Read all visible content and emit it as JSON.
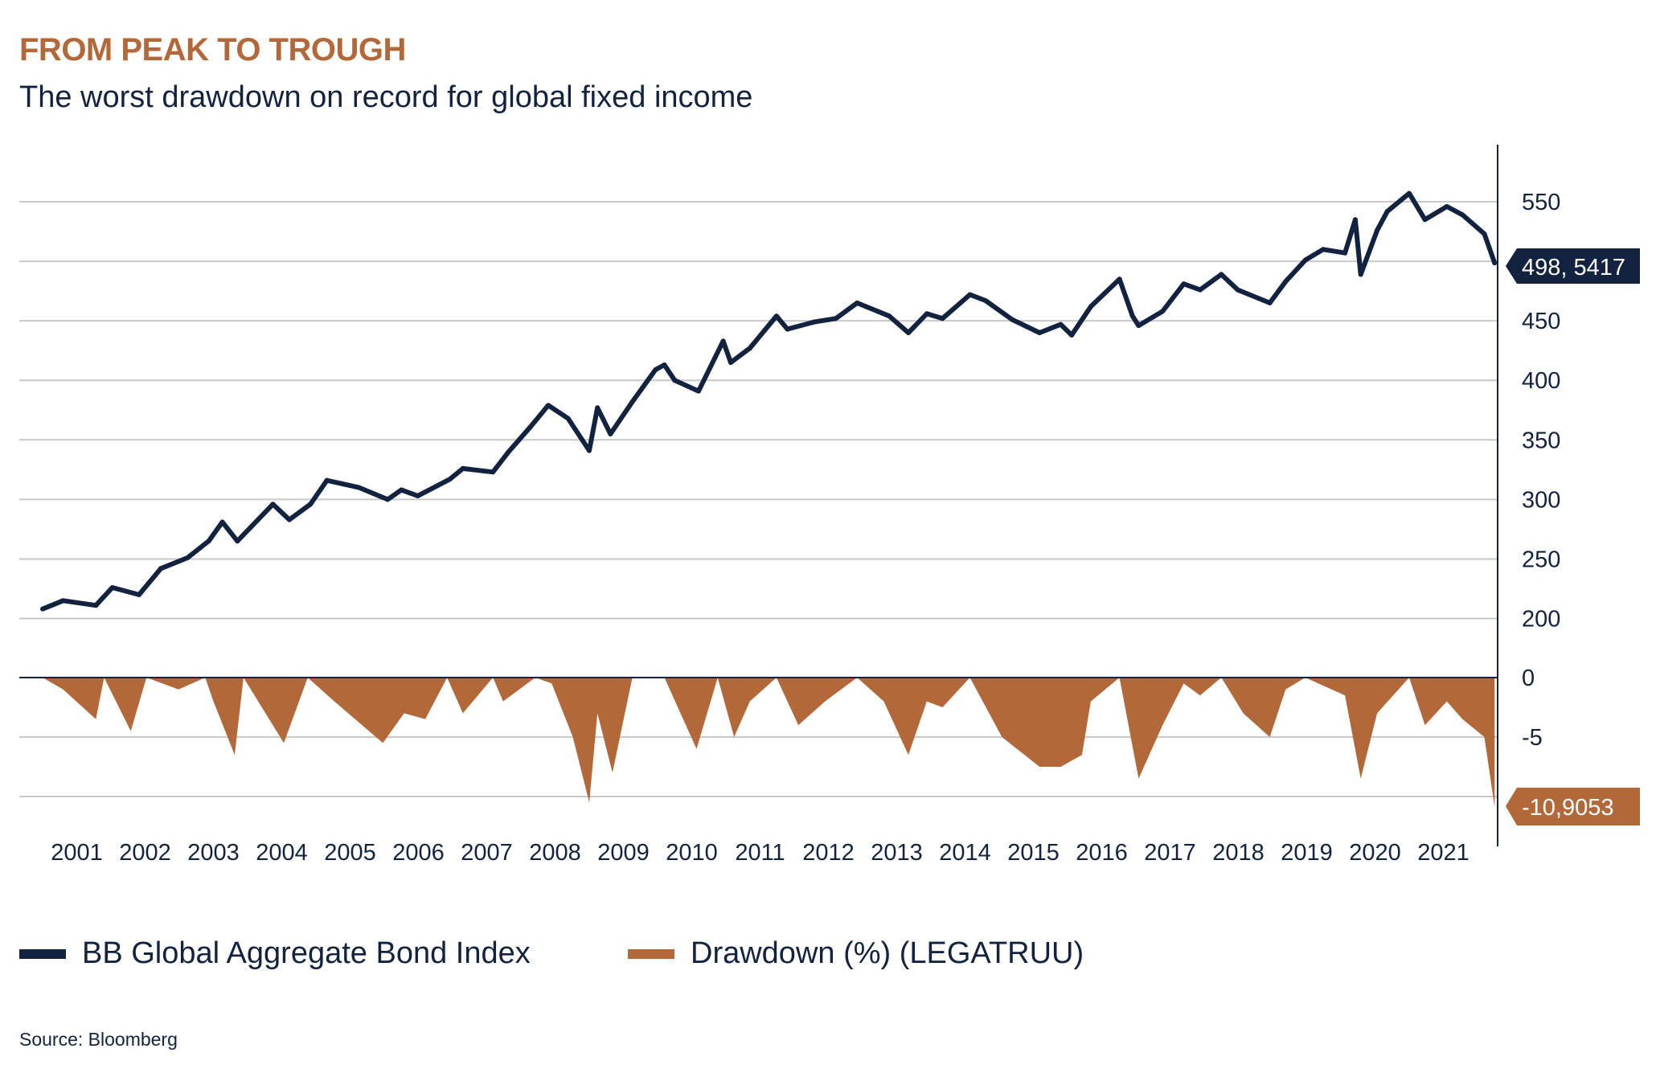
{
  "title": "FROM PEAK TO TROUGH",
  "subtitle": "The worst drawdown on record for global fixed income",
  "source": "Source: Bloomberg",
  "colors": {
    "index": "#13233f",
    "drawdown": "#b3683a",
    "grid": "#c8c8c8",
    "title": "#b3683a"
  },
  "chart_data": {
    "type": "line+area",
    "x_ticks": [
      "2001",
      "2002",
      "2003",
      "2004",
      "2005",
      "2006",
      "2007",
      "2008",
      "2009",
      "2010",
      "2011",
      "2012",
      "2013",
      "2014",
      "2015",
      "2016",
      "2017",
      "2018",
      "2019",
      "2020",
      "2021"
    ],
    "y_axis_position": "right",
    "grid": true,
    "legend_placement": "bottom",
    "upper_panel": {
      "yticks": [
        "550",
        "450",
        "400",
        "350",
        "300",
        "250",
        "200"
      ],
      "ylim": [
        200,
        550
      ],
      "last_value_label": "498, 5417",
      "series": {
        "name": "BB Global Aggregate Bond Index",
        "type": "line",
        "points": [
          [
            2000.6,
            208
          ],
          [
            2000.9,
            215
          ],
          [
            2001.38,
            211
          ],
          [
            2001.62,
            226
          ],
          [
            2002.01,
            220
          ],
          [
            2002.33,
            242
          ],
          [
            2002.72,
            251
          ],
          [
            2003.03,
            265
          ],
          [
            2003.23,
            281
          ],
          [
            2003.45,
            265
          ],
          [
            2003.97,
            296
          ],
          [
            2004.21,
            283
          ],
          [
            2004.52,
            296
          ],
          [
            2004.76,
            316
          ],
          [
            2005.23,
            310
          ],
          [
            2005.65,
            300
          ],
          [
            2005.85,
            308
          ],
          [
            2006.09,
            303
          ],
          [
            2006.56,
            317
          ],
          [
            2006.75,
            326
          ],
          [
            2007.19,
            323
          ],
          [
            2007.42,
            340
          ],
          [
            2007.74,
            361
          ],
          [
            2008.0,
            379
          ],
          [
            2008.29,
            368
          ],
          [
            2008.6,
            341
          ],
          [
            2008.72,
            377
          ],
          [
            2008.91,
            355
          ],
          [
            2009.23,
            382
          ],
          [
            2009.57,
            409
          ],
          [
            2009.7,
            413
          ],
          [
            2009.85,
            400
          ],
          [
            2010.2,
            391
          ],
          [
            2010.56,
            433
          ],
          [
            2010.67,
            415
          ],
          [
            2010.95,
            427
          ],
          [
            2011.34,
            454
          ],
          [
            2011.5,
            443
          ],
          [
            2011.89,
            449
          ],
          [
            2012.21,
            452
          ],
          [
            2012.52,
            465
          ],
          [
            2012.99,
            454
          ],
          [
            2013.27,
            440
          ],
          [
            2013.54,
            456
          ],
          [
            2013.77,
            452
          ],
          [
            2014.17,
            472
          ],
          [
            2014.4,
            467
          ],
          [
            2014.79,
            451
          ],
          [
            2015.19,
            440
          ],
          [
            2015.5,
            447
          ],
          [
            2015.66,
            438
          ],
          [
            2015.94,
            462
          ],
          [
            2016.36,
            485
          ],
          [
            2016.55,
            454
          ],
          [
            2016.64,
            446
          ],
          [
            2016.99,
            458
          ],
          [
            2017.3,
            481
          ],
          [
            2017.54,
            476
          ],
          [
            2017.85,
            489
          ],
          [
            2018.09,
            476
          ],
          [
            2018.56,
            465
          ],
          [
            2018.79,
            483
          ],
          [
            2019.08,
            501
          ],
          [
            2019.34,
            510
          ],
          [
            2019.66,
            507
          ],
          [
            2019.81,
            535
          ],
          [
            2019.89,
            489
          ],
          [
            2020.13,
            526
          ],
          [
            2020.28,
            542
          ],
          [
            2020.6,
            557
          ],
          [
            2020.83,
            535
          ],
          [
            2021.15,
            546
          ],
          [
            2021.38,
            539
          ],
          [
            2021.7,
            523
          ],
          [
            2021.85,
            498.54
          ]
        ]
      }
    },
    "lower_panel": {
      "yticks": [
        "0",
        "-5"
      ],
      "ylim": [
        -11,
        0
      ],
      "last_value_label": "-10,9053",
      "series": {
        "name": "Drawdown (%) (LEGATRUU)",
        "type": "area",
        "points": [
          [
            2000.6,
            0
          ],
          [
            2000.9,
            -1
          ],
          [
            2001.38,
            -3.5
          ],
          [
            2001.5,
            0
          ],
          [
            2001.89,
            -4.5
          ],
          [
            2002.12,
            0
          ],
          [
            2002.59,
            -1
          ],
          [
            2002.98,
            0
          ],
          [
            2003.1,
            -2
          ],
          [
            2003.41,
            -6.5
          ],
          [
            2003.54,
            0
          ],
          [
            2004.13,
            -5.5
          ],
          [
            2004.48,
            0
          ],
          [
            2004.87,
            -2
          ],
          [
            2005.58,
            -5.5
          ],
          [
            2005.89,
            -3
          ],
          [
            2006.2,
            -3.5
          ],
          [
            2006.52,
            0
          ],
          [
            2006.75,
            -3
          ],
          [
            2007.19,
            0
          ],
          [
            2007.34,
            -2
          ],
          [
            2007.81,
            0
          ],
          [
            2008.05,
            -0.5
          ],
          [
            2008.36,
            -5
          ],
          [
            2008.6,
            -10.5
          ],
          [
            2008.72,
            -3
          ],
          [
            2008.94,
            -8
          ],
          [
            2009.23,
            0
          ],
          [
            2009.7,
            0
          ],
          [
            2010.17,
            -6
          ],
          [
            2010.48,
            0
          ],
          [
            2010.72,
            -5
          ],
          [
            2010.95,
            -2
          ],
          [
            2011.34,
            0
          ],
          [
            2011.66,
            -4
          ],
          [
            2012.05,
            -2
          ],
          [
            2012.52,
            0
          ],
          [
            2012.91,
            -2
          ],
          [
            2013.27,
            -6.5
          ],
          [
            2013.54,
            -2
          ],
          [
            2013.77,
            -2.5
          ],
          [
            2014.17,
            0
          ],
          [
            2014.64,
            -5
          ],
          [
            2015.19,
            -7.5
          ],
          [
            2015.5,
            -7.5
          ],
          [
            2015.81,
            -6.5
          ],
          [
            2015.94,
            -2
          ],
          [
            2016.36,
            0
          ],
          [
            2016.64,
            -8.5
          ],
          [
            2016.99,
            -4
          ],
          [
            2017.3,
            -0.5
          ],
          [
            2017.54,
            -1.5
          ],
          [
            2017.85,
            0
          ],
          [
            2018.17,
            -3
          ],
          [
            2018.56,
            -5
          ],
          [
            2018.79,
            -1
          ],
          [
            2019.08,
            0
          ],
          [
            2019.66,
            -1.5
          ],
          [
            2019.89,
            -8.5
          ],
          [
            2020.13,
            -3
          ],
          [
            2020.6,
            0
          ],
          [
            2020.83,
            -4
          ],
          [
            2021.15,
            -2
          ],
          [
            2021.38,
            -3.5
          ],
          [
            2021.7,
            -5
          ],
          [
            2021.85,
            -10.9053
          ]
        ]
      }
    }
  }
}
